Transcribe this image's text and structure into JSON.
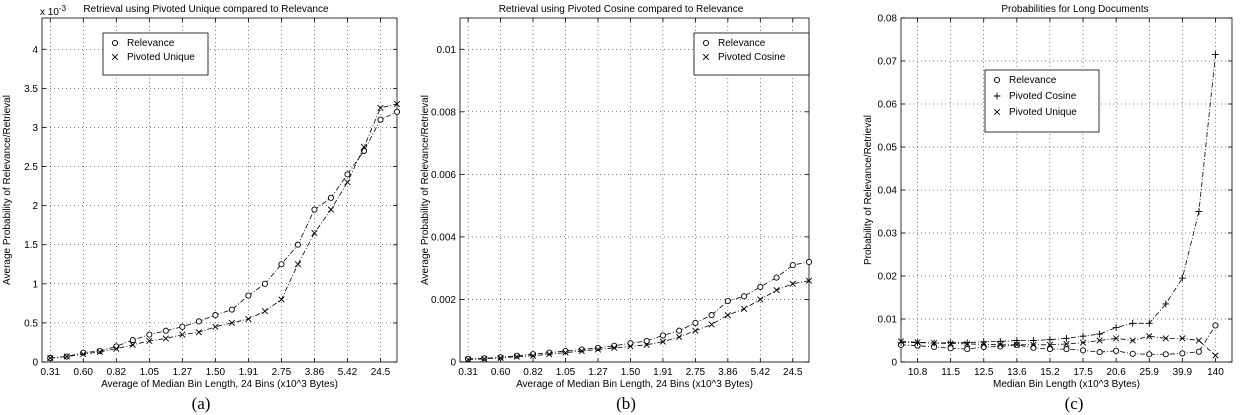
{
  "chart_data": [
    {
      "type": "line",
      "panel_label": "(a)",
      "title": "Retrieval using Pivoted Unique compared to Relevance",
      "xlabel": "Average of Median Bin Length, 24 Bins (x10^3 Bytes)",
      "ylabel": "Average Probability of Relevance/Retrieval",
      "y_multiplier": "x 10^-3",
      "x_tick_labels": [
        "0.31",
        "0.60",
        "0.82",
        "1.05",
        "1.27",
        "1.50",
        "1.91",
        "2.75",
        "3.86",
        "5.42",
        "24.5"
      ],
      "x_tick_positions": [
        0,
        2,
        4,
        6,
        8,
        10,
        12,
        14,
        16,
        18,
        20
      ],
      "y_tick_labels": [
        "0",
        "0.5",
        "1",
        "1.5",
        "2",
        "2.5",
        "3",
        "3.5",
        "4"
      ],
      "ylim": [
        0,
        4.4
      ],
      "xlim": [
        -0.5,
        21
      ],
      "grid": true,
      "legend_position": "top-left",
      "series": [
        {
          "name": "Relevance",
          "marker": "circle",
          "line": "dashdot",
          "x": [
            0,
            1,
            2,
            3,
            4,
            5,
            6,
            7,
            8,
            9,
            10,
            11,
            12,
            13,
            14,
            15,
            16,
            17,
            18,
            19,
            20,
            21
          ],
          "values": [
            0.05,
            0.07,
            0.12,
            0.14,
            0.2,
            0.28,
            0.35,
            0.4,
            0.45,
            0.52,
            0.6,
            0.67,
            0.85,
            1.0,
            1.25,
            1.5,
            1.95,
            2.1,
            2.4,
            2.7,
            3.1,
            3.2
          ]
        },
        {
          "name": "Pivoted Unique",
          "marker": "x",
          "line": "dashdot",
          "x": [
            0,
            1,
            2,
            3,
            4,
            5,
            6,
            7,
            8,
            9,
            10,
            11,
            12,
            13,
            14,
            15,
            16,
            17,
            18,
            19,
            20,
            21
          ],
          "values": [
            0.05,
            0.07,
            0.1,
            0.13,
            0.17,
            0.22,
            0.27,
            0.3,
            0.35,
            0.38,
            0.45,
            0.5,
            0.55,
            0.65,
            0.8,
            1.25,
            1.65,
            1.95,
            2.3,
            2.75,
            3.25,
            3.3
          ]
        }
      ]
    },
    {
      "type": "line",
      "panel_label": "(b)",
      "title": "Retrieval using Pivoted Cosine compared to Relevance",
      "xlabel": "Average of Median Bin Length, 24 Bins (x10^3 Bytes)",
      "ylabel": "Average Probability of Relevance/Retrieval",
      "x_tick_labels": [
        "0.31",
        "0.60",
        "0.82",
        "1.05",
        "1.27",
        "1.50",
        "1.91",
        "2.75",
        "3.86",
        "5.42",
        "24.5"
      ],
      "x_tick_positions": [
        0,
        2,
        4,
        6,
        8,
        10,
        12,
        14,
        16,
        18,
        20
      ],
      "y_tick_labels": [
        "0",
        "0.002",
        "0.004",
        "0.006",
        "0.008",
        "0.01"
      ],
      "ylim": [
        0,
        0.011
      ],
      "xlim": [
        -0.5,
        21
      ],
      "grid": true,
      "legend_position": "top-right",
      "series": [
        {
          "name": "Relevance",
          "marker": "circle",
          "line": "dashdot",
          "x": [
            0,
            1,
            2,
            3,
            4,
            5,
            6,
            7,
            8,
            9,
            10,
            11,
            12,
            13,
            14,
            15,
            16,
            17,
            18,
            19,
            20,
            21
          ],
          "values": [
            0.0001,
            0.00012,
            0.00015,
            0.0002,
            0.00025,
            0.0003,
            0.00035,
            0.0004,
            0.00045,
            0.00052,
            0.0006,
            0.00067,
            0.00085,
            0.001,
            0.00125,
            0.0015,
            0.00195,
            0.0021,
            0.0024,
            0.0027,
            0.0031,
            0.0032
          ]
        },
        {
          "name": "Pivoted Cosine",
          "marker": "x",
          "line": "dashdot",
          "x": [
            0,
            1,
            2,
            3,
            4,
            5,
            6,
            7,
            8,
            9,
            10,
            11,
            12,
            13,
            14,
            15,
            16,
            17,
            18,
            19,
            20,
            21
          ],
          "values": [
            8e-05,
            0.0001,
            0.00013,
            0.00017,
            0.0002,
            0.00025,
            0.0003,
            0.00035,
            0.0004,
            0.00045,
            0.0005,
            0.00055,
            0.00065,
            0.0008,
            0.001,
            0.0012,
            0.0015,
            0.0017,
            0.002,
            0.0023,
            0.0025,
            0.0026
          ]
        }
      ]
    },
    {
      "type": "line",
      "panel_label": "(c)",
      "title": "Probabilities for Long Documents",
      "xlabel": "Median Bin Length (x10^3 Bytes)",
      "ylabel": "Probability of Relevance/Retrieval",
      "x_tick_labels": [
        "10.8",
        "11.5",
        "12.5",
        "13.6",
        "15.2",
        "17.5",
        "20.6",
        "25.9",
        "39.9",
        "140"
      ],
      "x_tick_positions": [
        1,
        3,
        5,
        7,
        9,
        11,
        13,
        15,
        17,
        19
      ],
      "y_tick_labels": [
        "0",
        "0.01",
        "0.02",
        "0.03",
        "0.04",
        "0.05",
        "0.06",
        "0.07",
        "0.08"
      ],
      "ylim": [
        0,
        0.08
      ],
      "xlim": [
        0,
        20
      ],
      "grid": true,
      "legend_position": "top-left",
      "series": [
        {
          "name": "Relevance",
          "marker": "circle",
          "line": "dashdot",
          "x": [
            0,
            1,
            2,
            3,
            4,
            5,
            6,
            7,
            8,
            9,
            10,
            11,
            12,
            13,
            14,
            15,
            16,
            17,
            18,
            19
          ],
          "values": [
            0.004,
            0.0038,
            0.0035,
            0.0032,
            0.003,
            0.0035,
            0.0036,
            0.004,
            0.0033,
            0.003,
            0.003,
            0.0027,
            0.0023,
            0.0026,
            0.0019,
            0.0018,
            0.0018,
            0.002,
            0.0024,
            0.0085
          ]
        },
        {
          "name": "Pivoted Cosine",
          "marker": "plus",
          "line": "dashdot",
          "x": [
            0,
            1,
            2,
            3,
            4,
            5,
            6,
            7,
            8,
            9,
            10,
            11,
            12,
            13,
            14,
            15,
            16,
            17,
            18,
            19
          ],
          "values": [
            0.0045,
            0.0045,
            0.0044,
            0.0045,
            0.0045,
            0.0047,
            0.0048,
            0.005,
            0.005,
            0.0052,
            0.0055,
            0.006,
            0.0065,
            0.008,
            0.009,
            0.009,
            0.0135,
            0.0195,
            0.035,
            0.0715
          ]
        },
        {
          "name": "Pivoted Unique",
          "marker": "x",
          "line": "dashdot",
          "x": [
            0,
            1,
            2,
            3,
            4,
            5,
            6,
            7,
            8,
            9,
            10,
            11,
            12,
            13,
            14,
            15,
            16,
            17,
            18,
            19
          ],
          "values": [
            0.0048,
            0.0046,
            0.0044,
            0.0043,
            0.0042,
            0.0041,
            0.004,
            0.004,
            0.004,
            0.004,
            0.0042,
            0.0045,
            0.005,
            0.0055,
            0.005,
            0.006,
            0.0055,
            0.0055,
            0.005,
            0.0015
          ]
        }
      ]
    }
  ]
}
